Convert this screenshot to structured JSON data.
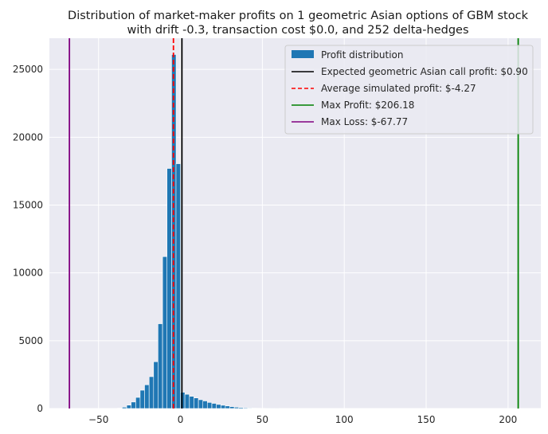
{
  "chart_data": {
    "type": "bar",
    "title_lines": [
      "Distribution of market-maker profits on 1 geometric Asian options of GBM stock",
      "with drift -0.3, transaction cost $0.0, and 252 delta-hedges"
    ],
    "xlabel": "",
    "ylabel": "",
    "xlim": [
      -80,
      220
    ],
    "ylim": [
      0,
      27300
    ],
    "xticks": [
      -50,
      0,
      50,
      100,
      150,
      200
    ],
    "xtick_labels": [
      "−50",
      "0",
      "50",
      "100",
      "150",
      "200"
    ],
    "yticks": [
      0,
      5000,
      10000,
      15000,
      20000,
      25000
    ],
    "ytick_labels": [
      "0",
      "5000",
      "10000",
      "15000",
      "20000",
      "25000"
    ],
    "grid": true,
    "legend_position": "top-right",
    "histogram": {
      "name": "Profit distribution",
      "color": "#1f77b4",
      "bin_width": 2.74,
      "bins": [
        {
          "x0": -38.3,
          "count": 30
        },
        {
          "x0": -35.6,
          "count": 100
        },
        {
          "x0": -32.8,
          "count": 250
        },
        {
          "x0": -30.1,
          "count": 480
        },
        {
          "x0": -27.3,
          "count": 820
        },
        {
          "x0": -24.6,
          "count": 1350
        },
        {
          "x0": -21.9,
          "count": 1750
        },
        {
          "x0": -19.1,
          "count": 2350
        },
        {
          "x0": -16.4,
          "count": 3450
        },
        {
          "x0": -13.7,
          "count": 6250
        },
        {
          "x0": -10.9,
          "count": 11200
        },
        {
          "x0": -8.2,
          "count": 17700
        },
        {
          "x0": -5.4,
          "count": 26100
        },
        {
          "x0": -2.7,
          "count": 18050
        },
        {
          "x0": 0.0,
          "count": 1200
        },
        {
          "x0": 2.7,
          "count": 1050
        },
        {
          "x0": 5.5,
          "count": 900
        },
        {
          "x0": 8.2,
          "count": 780
        },
        {
          "x0": 11.0,
          "count": 650
        },
        {
          "x0": 13.7,
          "count": 560
        },
        {
          "x0": 16.4,
          "count": 450
        },
        {
          "x0": 19.2,
          "count": 380
        },
        {
          "x0": 21.9,
          "count": 300
        },
        {
          "x0": 24.7,
          "count": 240
        },
        {
          "x0": 27.4,
          "count": 190
        },
        {
          "x0": 30.1,
          "count": 140
        },
        {
          "x0": 32.9,
          "count": 100
        },
        {
          "x0": 35.6,
          "count": 75
        },
        {
          "x0": 38.4,
          "count": 55
        },
        {
          "x0": 41.1,
          "count": 40
        },
        {
          "x0": 43.8,
          "count": 30
        },
        {
          "x0": 46.6,
          "count": 20
        },
        {
          "x0": 49.3,
          "count": 15
        },
        {
          "x0": 52.1,
          "count": 10
        },
        {
          "x0": 54.8,
          "count": 8
        },
        {
          "x0": 57.5,
          "count": 5
        }
      ]
    },
    "reference_lines": [
      {
        "label": "Expected geometric Asian call profit: $0.90",
        "x": 0.9,
        "color": "#000000",
        "style": "solid"
      },
      {
        "label": "Average simulated profit: $-4.27",
        "x": -4.27,
        "color": "#ff0000",
        "style": "dashed"
      },
      {
        "label": "Max Profit: $206.18",
        "x": 206.18,
        "color": "#008000",
        "style": "solid"
      },
      {
        "label": "Max Loss: $-67.77",
        "x": -67.77,
        "color": "#800080",
        "style": "solid"
      }
    ]
  }
}
